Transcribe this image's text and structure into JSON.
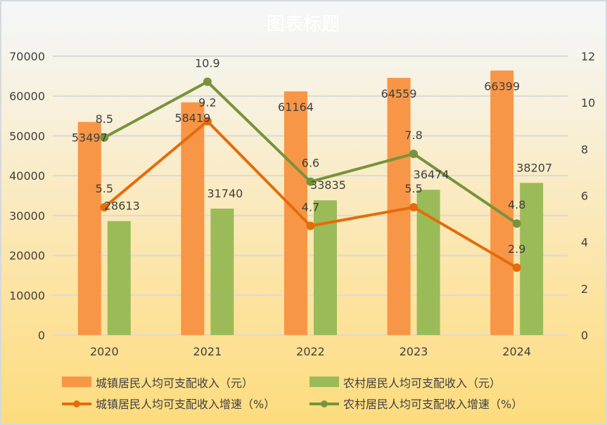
{
  "chart_data": {
    "type": "bar",
    "title": "图表标题",
    "categories": [
      "2020",
      "2021",
      "2022",
      "2023",
      "2024"
    ],
    "series": [
      {
        "name": "城镇居民人均可支配收入（元）",
        "kind": "bar",
        "axis": "left",
        "color": "#f79646",
        "values": [
          53497,
          58419,
          61164,
          64559,
          66399
        ]
      },
      {
        "name": "农村居民人均可支配收入（元）",
        "kind": "bar",
        "axis": "left",
        "color": "#9bbb59",
        "values": [
          28613,
          31740,
          33835,
          36474,
          38207
        ]
      },
      {
        "name": "城镇居民人均可支配收入增速（%）",
        "kind": "line",
        "axis": "right",
        "color": "#e46c0a",
        "values": [
          5.5,
          9.2,
          4.7,
          5.5,
          2.9
        ]
      },
      {
        "name": "农村居民人均可支配收入增速（%）",
        "kind": "line",
        "axis": "right",
        "color": "#77933c",
        "values": [
          8.5,
          10.9,
          6.6,
          7.8,
          4.8
        ]
      }
    ],
    "y_left": {
      "range": [
        0,
        70000
      ],
      "ticks": [
        0,
        10000,
        20000,
        30000,
        40000,
        50000,
        60000,
        70000
      ]
    },
    "y_right": {
      "range": [
        0,
        12
      ],
      "ticks": [
        0,
        2,
        4,
        6,
        8,
        10,
        12
      ]
    },
    "grid": true,
    "legend": "bottom"
  }
}
